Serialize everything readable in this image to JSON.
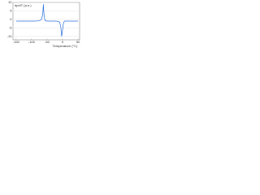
{
  "chart_data": {
    "type": "line",
    "y_label": "dp/dT (a.u.)",
    "x_label": "Temperature (°C)",
    "x": [
      -150,
      -130,
      -110,
      -90,
      -75,
      -68,
      -64,
      -62,
      -60,
      -57,
      -50,
      -35,
      -20,
      -10,
      -6,
      -3,
      0,
      3,
      6,
      10,
      20,
      35,
      50
    ],
    "series": [
      {
        "name": "dp/dT",
        "color": "#2a6fdb",
        "values": [
          -1,
          -1,
          -1,
          -1,
          -0.8,
          0,
          3,
          9,
          3,
          -0.5,
          -1,
          -1,
          -1,
          -1.5,
          -4,
          -10,
          -6,
          -2,
          -1,
          -1,
          -1,
          -1,
          -1
        ]
      }
    ],
    "xlim": [
      -160,
      55
    ],
    "xticks": [
      -150,
      -100,
      -50,
      0,
      50
    ],
    "ylim": [
      -12,
      10
    ],
    "yticks": [
      -10,
      -5,
      0,
      5,
      10
    ],
    "grid": true
  }
}
